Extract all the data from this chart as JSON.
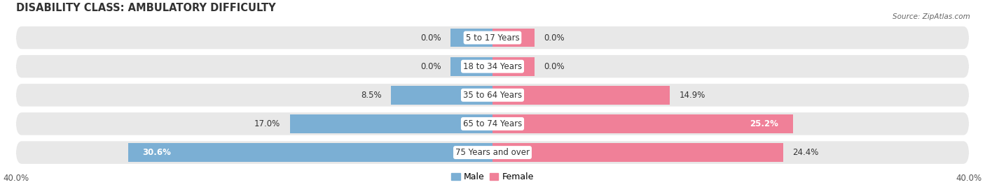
{
  "title": "DISABILITY CLASS: AMBULATORY DIFFICULTY",
  "source": "Source: ZipAtlas.com",
  "categories": [
    "5 to 17 Years",
    "18 to 34 Years",
    "35 to 64 Years",
    "65 to 74 Years",
    "75 Years and over"
  ],
  "male_values": [
    0.0,
    0.0,
    8.5,
    17.0,
    30.6
  ],
  "female_values": [
    0.0,
    0.0,
    14.9,
    25.2,
    24.4
  ],
  "male_color": "#7bafd4",
  "female_color": "#f08098",
  "male_label": "Male",
  "female_label": "Female",
  "xlim": 40.0,
  "bar_height": 0.65,
  "background_color": "#ffffff",
  "row_bg_color": "#e8e8e8",
  "title_fontsize": 10.5,
  "label_fontsize": 8.5,
  "axis_label_fontsize": 8.5,
  "category_fontsize": 8.5,
  "legend_fontsize": 9,
  "zero_stub": 3.5
}
